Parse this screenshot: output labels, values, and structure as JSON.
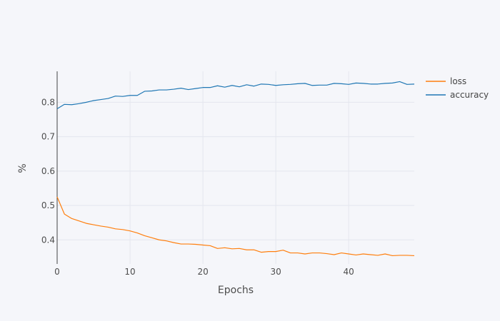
{
  "chart_data": {
    "type": "line",
    "title": "",
    "xlabel": "Epochs",
    "ylabel": "%",
    "xlim": [
      0,
      49
    ],
    "ylim": [
      0.33,
      0.89
    ],
    "x_ticks": [
      0,
      10,
      20,
      30,
      40
    ],
    "y_ticks": [
      0.4,
      0.5,
      0.6,
      0.7,
      0.8
    ],
    "grid": true,
    "legend_position": "top-right",
    "x": [
      0,
      1,
      2,
      3,
      4,
      5,
      6,
      7,
      8,
      9,
      10,
      11,
      12,
      13,
      14,
      15,
      16,
      17,
      18,
      19,
      20,
      21,
      22,
      23,
      24,
      25,
      26,
      27,
      28,
      29,
      30,
      31,
      32,
      33,
      34,
      35,
      36,
      37,
      38,
      39,
      40,
      41,
      42,
      43,
      44,
      45,
      46,
      47,
      48,
      49
    ],
    "series": [
      {
        "name": "loss",
        "color": "#ff7f0e",
        "values": [
          0.525,
          0.475,
          0.462,
          0.455,
          0.448,
          0.444,
          0.44,
          0.437,
          0.432,
          0.43,
          0.426,
          0.42,
          0.412,
          0.406,
          0.4,
          0.397,
          0.392,
          0.388,
          0.388,
          0.387,
          0.385,
          0.383,
          0.375,
          0.377,
          0.374,
          0.375,
          0.371,
          0.371,
          0.364,
          0.366,
          0.366,
          0.37,
          0.362,
          0.362,
          0.359,
          0.362,
          0.362,
          0.36,
          0.357,
          0.362,
          0.359,
          0.356,
          0.359,
          0.357,
          0.355,
          0.359,
          0.354,
          0.355,
          0.355,
          0.354
        ]
      },
      {
        "name": "accuracy",
        "color": "#1f77b4",
        "values": [
          0.781,
          0.794,
          0.793,
          0.796,
          0.8,
          0.805,
          0.808,
          0.811,
          0.818,
          0.817,
          0.82,
          0.82,
          0.832,
          0.833,
          0.836,
          0.836,
          0.838,
          0.841,
          0.837,
          0.84,
          0.843,
          0.843,
          0.848,
          0.844,
          0.849,
          0.845,
          0.851,
          0.847,
          0.853,
          0.852,
          0.849,
          0.851,
          0.852,
          0.854,
          0.855,
          0.849,
          0.85,
          0.85,
          0.855,
          0.854,
          0.852,
          0.856,
          0.855,
          0.853,
          0.853,
          0.855,
          0.856,
          0.86,
          0.852,
          0.853
        ]
      }
    ]
  }
}
